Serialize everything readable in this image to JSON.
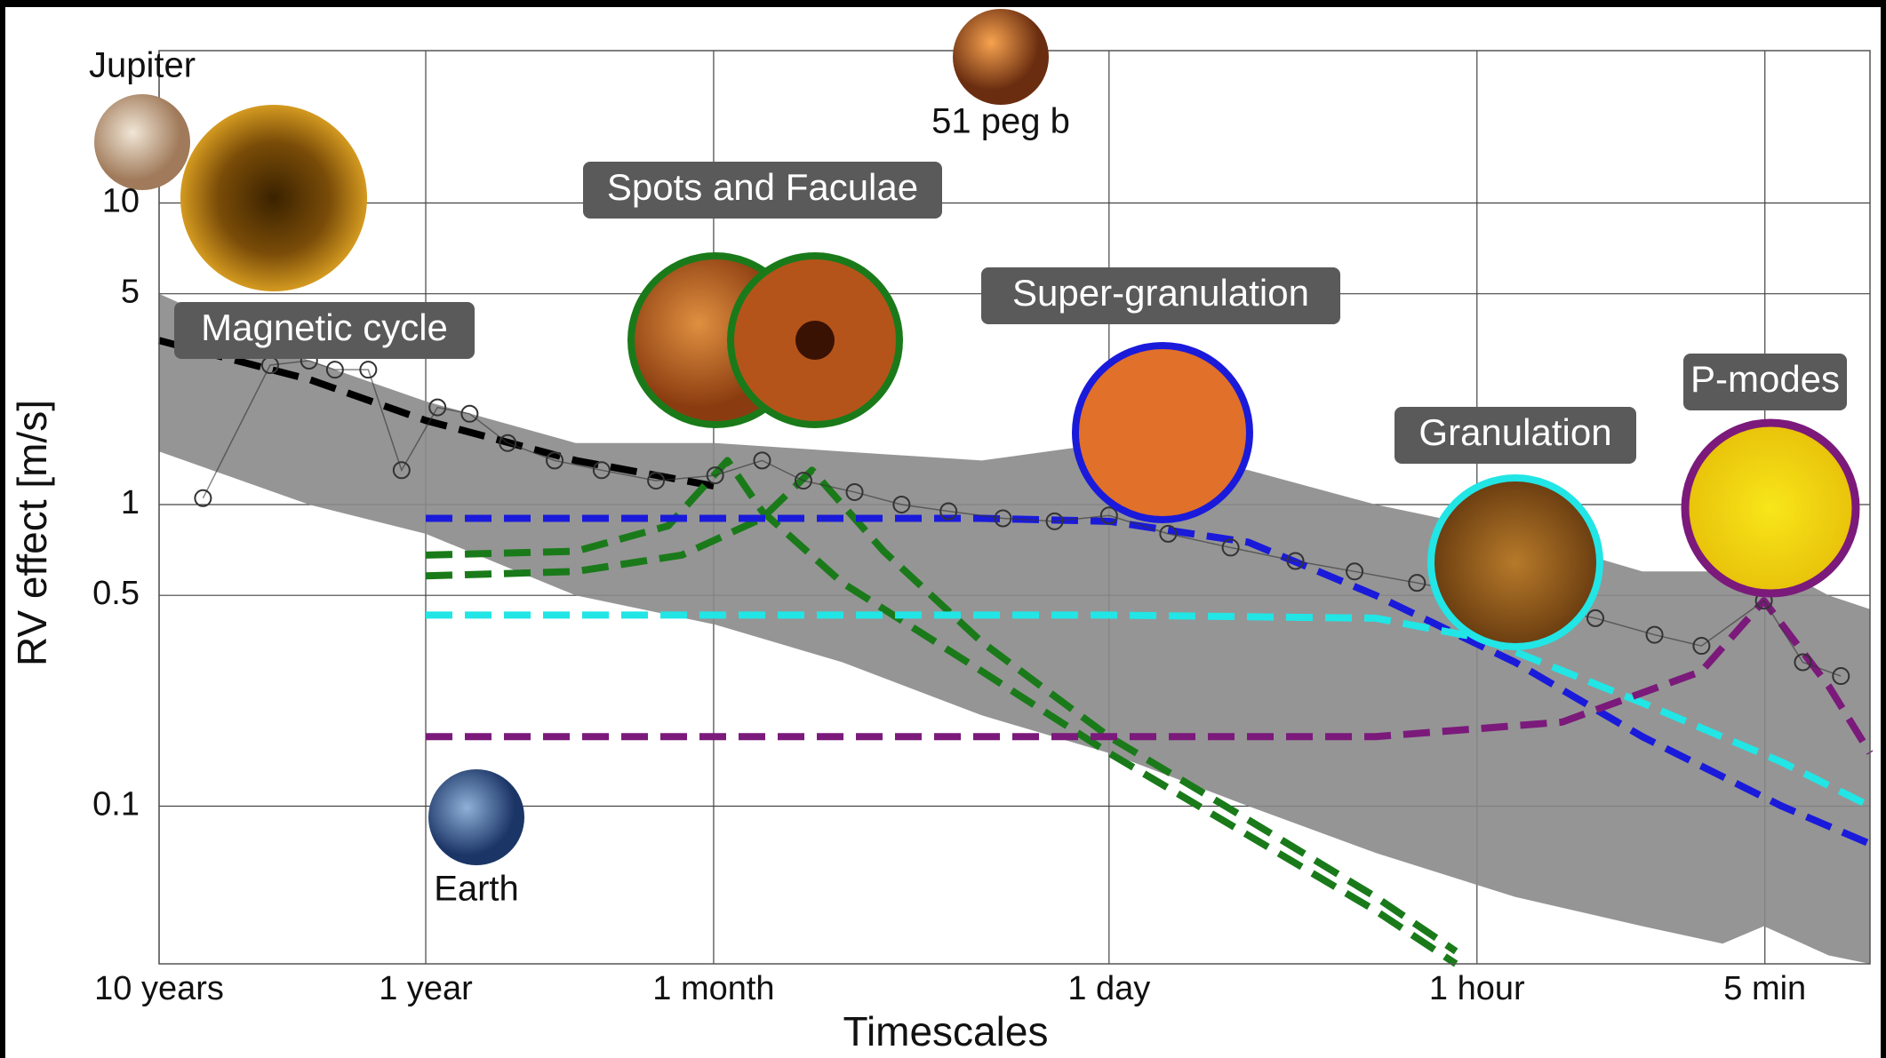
{
  "chart_data": {
    "type": "line",
    "xlabel": "Timescales",
    "ylabel": "RV effect [m/s]",
    "xscale": "log",
    "yscale": "log",
    "grid": true,
    "xlim": [
      3652.5,
      0.0014
    ],
    "ylim": [
      0.03,
      32
    ],
    "xticks": [
      {
        "value": 3652.5,
        "label": "10 years"
      },
      {
        "value": 365.25,
        "label": "1 year"
      },
      {
        "value": 30.4,
        "label": "1 month"
      },
      {
        "value": 1,
        "label": "1 day"
      },
      {
        "value": 0.0417,
        "label": "1 hour"
      },
      {
        "value": 0.00347,
        "label": "5 min"
      }
    ],
    "yticks": [
      0.1,
      0.5,
      1,
      5,
      10
    ],
    "band": {
      "color": "#8a8a8a",
      "x": [
        3652.5,
        1000,
        365.25,
        100,
        30,
        10,
        3,
        1,
        0.3,
        0.1,
        0.03,
        0.01,
        0.005,
        0.0035,
        0.002,
        0.0014
      ],
      "upper": [
        5,
        3,
        2.2,
        1.6,
        1.6,
        1.5,
        1.4,
        1.6,
        1.3,
        1.0,
        0.8,
        0.6,
        0.6,
        0.65,
        0.5,
        0.45
      ],
      "lower": [
        1.5,
        1.0,
        0.8,
        0.5,
        0.4,
        0.3,
        0.2,
        0.15,
        0.1,
        0.07,
        0.05,
        0.04,
        0.035,
        0.04,
        0.032,
        0.03
      ]
    },
    "series": [
      {
        "color": "#000000",
        "dash": true,
        "x": [
          3652.5,
          1000,
          365.25,
          100,
          30
        ],
        "values": [
          3.5,
          2.6,
          1.9,
          1.4,
          1.15
        ]
      },
      {
        "color": "#1a7a1a",
        "dash": true,
        "x": [
          365.25,
          100,
          45,
          27,
          20,
          10,
          3,
          1,
          0.3,
          0.1,
          0.05
        ],
        "values": [
          0.68,
          0.7,
          0.85,
          1.4,
          0.95,
          0.55,
          0.28,
          0.15,
          0.08,
          0.045,
          0.03
        ]
      },
      {
        "color": "#1a7a1a",
        "dash": true,
        "x": [
          365.25,
          100,
          40,
          20,
          13,
          7,
          3,
          1,
          0.3,
          0.1,
          0.05
        ],
        "values": [
          0.58,
          0.6,
          0.68,
          0.9,
          1.3,
          0.7,
          0.35,
          0.17,
          0.09,
          0.05,
          0.033
        ]
      },
      {
        "color": "#1a1adb",
        "dash": true,
        "x": [
          365.25,
          30,
          3,
          1,
          0.3,
          0.1,
          0.03,
          0.01,
          0.003,
          0.0014
        ],
        "values": [
          0.9,
          0.9,
          0.9,
          0.88,
          0.75,
          0.5,
          0.3,
          0.17,
          0.1,
          0.075
        ]
      },
      {
        "color": "#22e5e5",
        "dash": true,
        "x": [
          365.25,
          1,
          0.1,
          0.04,
          0.01,
          0.003,
          0.0014
        ],
        "values": [
          0.43,
          0.43,
          0.42,
          0.36,
          0.22,
          0.14,
          0.1
        ]
      },
      {
        "color": "#7b1a7b",
        "dash": true,
        "x": [
          365.25,
          1,
          0.1,
          0.02,
          0.006,
          0.0035,
          0.002,
          0.0014
        ],
        "values": [
          0.17,
          0.17,
          0.17,
          0.19,
          0.28,
          0.48,
          0.25,
          0.15
        ]
      },
      {
        "color": "#333333",
        "dash": false,
        "markers": true,
        "x": [
          2500,
          1400,
          1000,
          800,
          600,
          450,
          330,
          250,
          180,
          120,
          80,
          50,
          30,
          20,
          14,
          9,
          6,
          4,
          2.5,
          1.6,
          1,
          0.6,
          0.35,
          0.2,
          0.12,
          0.07,
          0.04,
          0.025,
          0.015,
          0.009,
          0.006,
          0.0035,
          0.0025,
          0.0018
        ],
        "values": [
          1.05,
          2.9,
          3.0,
          2.8,
          2.8,
          1.3,
          2.1,
          2.0,
          1.6,
          1.4,
          1.3,
          1.2,
          1.25,
          1.4,
          1.2,
          1.1,
          1.0,
          0.95,
          0.9,
          0.88,
          0.92,
          0.8,
          0.72,
          0.65,
          0.6,
          0.55,
          0.5,
          0.46,
          0.42,
          0.37,
          0.34,
          0.48,
          0.3,
          0.27
        ]
      }
    ],
    "annotations": [
      "Jupiter",
      "51 peg b",
      "Earth",
      "Magnetic cycle",
      "Spots and Faculae",
      "Super-granulation",
      "Granulation",
      "P-modes"
    ]
  }
}
